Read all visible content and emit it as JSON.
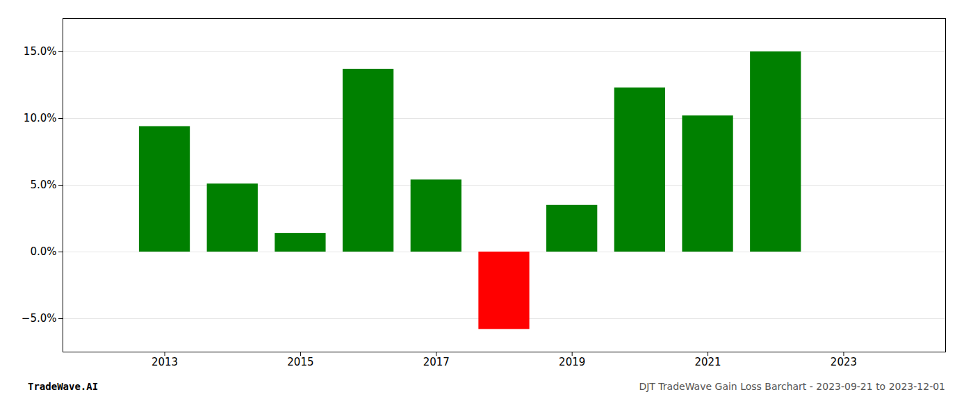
{
  "chart_data": {
    "type": "bar",
    "x": [
      2013,
      2014,
      2015,
      2016,
      2017,
      2018,
      2019,
      2020,
      2021,
      2022
    ],
    "values": [
      0.094,
      0.051,
      0.014,
      0.137,
      0.054,
      -0.058,
      0.035,
      0.123,
      0.102,
      0.15
    ],
    "colors": [
      "#008000",
      "#008000",
      "#008000",
      "#008000",
      "#008000",
      "#ff0000",
      "#008000",
      "#008000",
      "#008000",
      "#008000"
    ],
    "xlim": [
      2011.5,
      2024.5
    ],
    "xticks": [
      2013,
      2015,
      2017,
      2019,
      2021,
      2023
    ],
    "ylim": [
      -0.075,
      0.175
    ],
    "yticks": [
      {
        "value": -0.05,
        "label": "−5.0%"
      },
      {
        "value": 0.0,
        "label": "0.0%"
      },
      {
        "value": 0.05,
        "label": "5.0%"
      },
      {
        "value": 0.1,
        "label": "10.0%"
      },
      {
        "value": 0.15,
        "label": "15.0%"
      }
    ],
    "grid": true,
    "annotations": [
      "TradeWave.AI",
      "DJT TradeWave Gain Loss Barchart - 2023-09-21 to 2023-12-01"
    ]
  }
}
